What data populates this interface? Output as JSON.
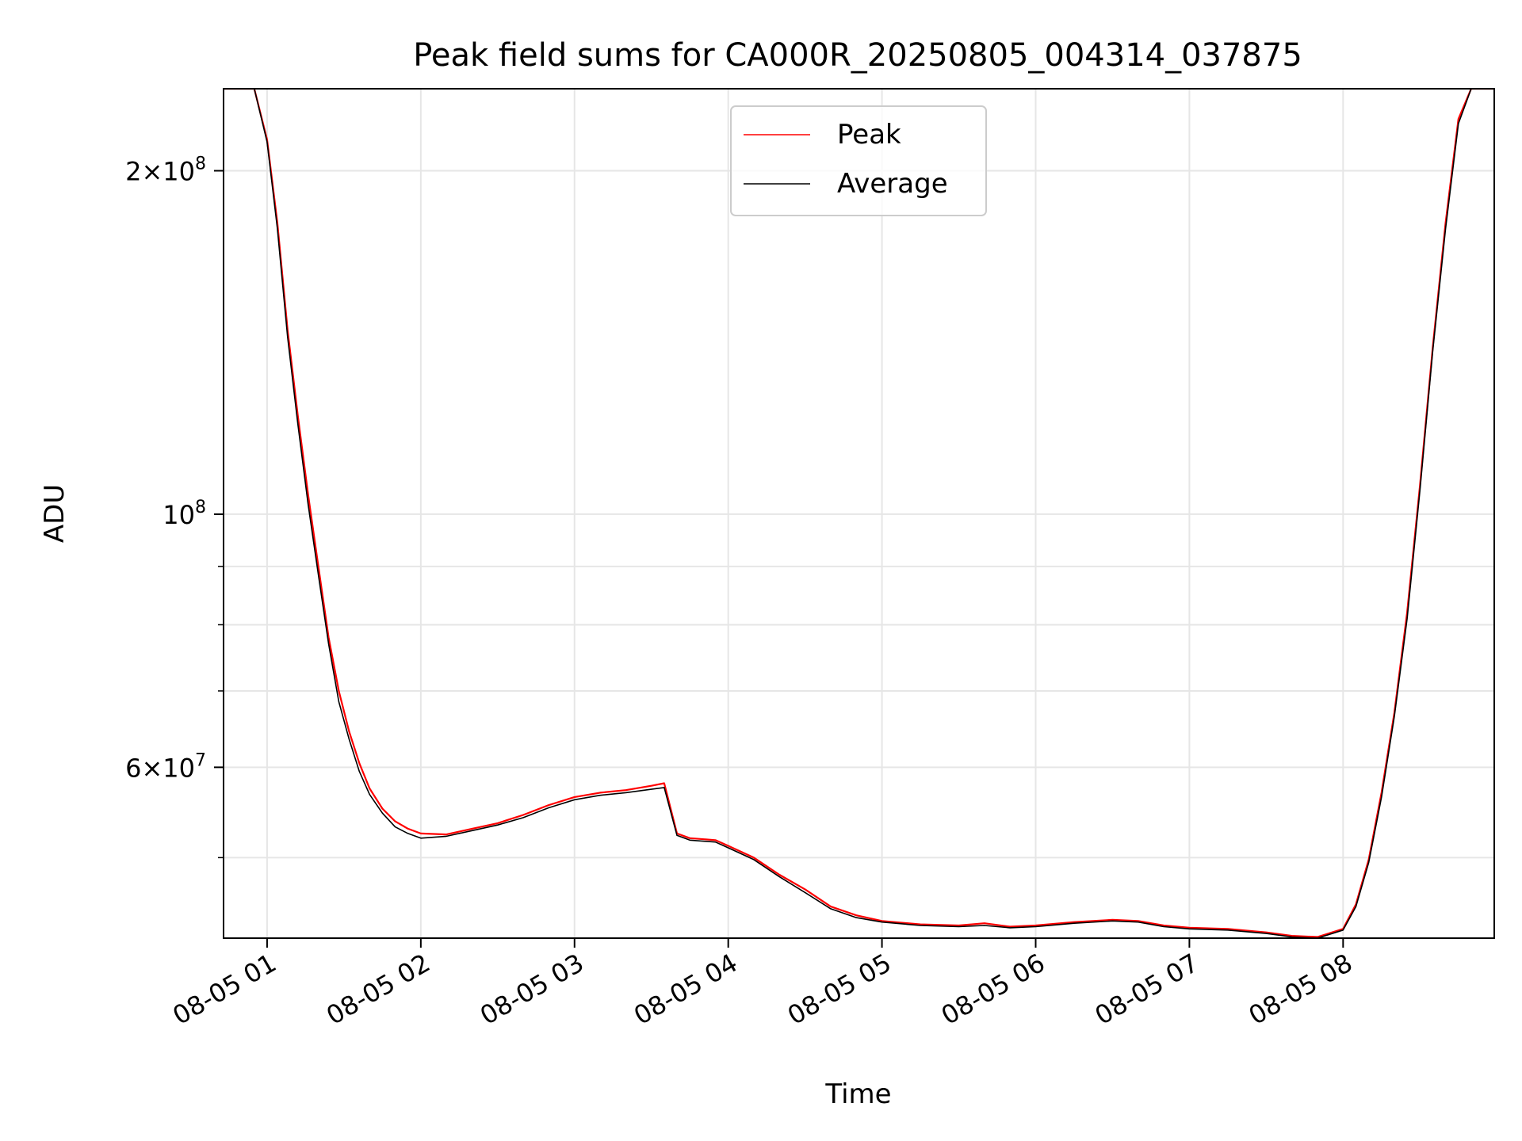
{
  "chart_data": {
    "type": "line",
    "title": "Peak field sums for CA000R_20250805_004314_037875",
    "xlabel": "Time",
    "ylabel": "ADU",
    "y_scale": "log",
    "grid": true,
    "legend_position": "top-center",
    "xlim": [
      "2025-08-05 00:43",
      "2025-08-05 08:59"
    ],
    "ylim": [
      42500000,
      236000000
    ],
    "x_ticks": [
      {
        "t": "2025-08-05 01:00",
        "label": "08-05 01"
      },
      {
        "t": "2025-08-05 02:00",
        "label": "08-05 02"
      },
      {
        "t": "2025-08-05 03:00",
        "label": "08-05 03"
      },
      {
        "t": "2025-08-05 04:00",
        "label": "08-05 04"
      },
      {
        "t": "2025-08-05 05:00",
        "label": "08-05 05"
      },
      {
        "t": "2025-08-05 06:00",
        "label": "08-05 06"
      },
      {
        "t": "2025-08-05 07:00",
        "label": "08-05 07"
      },
      {
        "t": "2025-08-05 08:00",
        "label": "08-05 08"
      }
    ],
    "y_major_ticks": [
      {
        "value": 60000000,
        "mantissa": "6",
        "exponent": "7"
      },
      {
        "value": 100000000,
        "mantissa": "",
        "exponent": "8"
      },
      {
        "value": 200000000,
        "mantissa": "2",
        "exponent": "8"
      }
    ],
    "y_minor_grid": [
      50000000,
      70000000,
      80000000,
      90000000
    ],
    "series": [
      {
        "name": "Peak",
        "color": "#ff0000",
        "x": [
          "2025-08-05 00:43",
          "2025-08-05 00:55",
          "2025-08-05 01:00",
          "2025-08-05 01:04",
          "2025-08-05 01:08",
          "2025-08-05 01:12",
          "2025-08-05 01:16",
          "2025-08-05 01:20",
          "2025-08-05 01:24",
          "2025-08-05 01:28",
          "2025-08-05 01:32",
          "2025-08-05 01:36",
          "2025-08-05 01:40",
          "2025-08-05 01:45",
          "2025-08-05 01:50",
          "2025-08-05 01:55",
          "2025-08-05 02:00",
          "2025-08-05 02:10",
          "2025-08-05 02:20",
          "2025-08-05 02:30",
          "2025-08-05 02:40",
          "2025-08-05 02:50",
          "2025-08-05 03:00",
          "2025-08-05 03:10",
          "2025-08-05 03:20",
          "2025-08-05 03:30",
          "2025-08-05 03:35",
          "2025-08-05 03:40",
          "2025-08-05 03:45",
          "2025-08-05 03:55",
          "2025-08-05 04:00",
          "2025-08-05 04:10",
          "2025-08-05 04:20",
          "2025-08-05 04:30",
          "2025-08-05 04:40",
          "2025-08-05 04:50",
          "2025-08-05 05:00",
          "2025-08-05 05:15",
          "2025-08-05 05:30",
          "2025-08-05 05:40",
          "2025-08-05 05:50",
          "2025-08-05 06:00",
          "2025-08-05 06:15",
          "2025-08-05 06:30",
          "2025-08-05 06:40",
          "2025-08-05 06:50",
          "2025-08-05 07:00",
          "2025-08-05 07:15",
          "2025-08-05 07:30",
          "2025-08-05 07:40",
          "2025-08-05 07:50",
          "2025-08-05 08:00",
          "2025-08-05 08:05",
          "2025-08-05 08:10",
          "2025-08-05 08:15",
          "2025-08-05 08:20",
          "2025-08-05 08:25",
          "2025-08-05 08:30",
          "2025-08-05 08:35",
          "2025-08-05 08:40",
          "2025-08-05 08:45",
          "2025-08-05 08:50",
          "2025-08-05 08:59"
        ],
        "y": [
          236000000,
          236000000,
          213000000,
          180000000,
          145000000,
          122000000,
          104000000,
          90000000,
          78000000,
          70000000,
          64500000,
          60500000,
          57500000,
          55200000,
          53800000,
          53000000,
          52500000,
          52400000,
          53000000,
          53600000,
          54500000,
          55600000,
          56500000,
          57000000,
          57300000,
          57800000,
          58100000,
          52500000,
          52000000,
          51800000,
          51200000,
          50000000,
          48300000,
          46900000,
          45300000,
          44500000,
          44000000,
          43700000,
          43600000,
          43800000,
          43500000,
          43600000,
          43900000,
          44100000,
          44000000,
          43600000,
          43400000,
          43300000,
          43000000,
          42700000,
          42600000,
          43300000,
          45500000,
          49800000,
          57000000,
          67000000,
          82000000,
          106000000,
          140000000,
          180000000,
          222000000,
          236000000,
          236000000
        ]
      },
      {
        "name": "Average",
        "color": "#000000",
        "x": [
          "2025-08-05 00:43",
          "2025-08-05 00:55",
          "2025-08-05 01:00",
          "2025-08-05 01:04",
          "2025-08-05 01:08",
          "2025-08-05 01:12",
          "2025-08-05 01:16",
          "2025-08-05 01:20",
          "2025-08-05 01:24",
          "2025-08-05 01:28",
          "2025-08-05 01:32",
          "2025-08-05 01:36",
          "2025-08-05 01:40",
          "2025-08-05 01:45",
          "2025-08-05 01:50",
          "2025-08-05 01:55",
          "2025-08-05 02:00",
          "2025-08-05 02:10",
          "2025-08-05 02:20",
          "2025-08-05 02:30",
          "2025-08-05 02:40",
          "2025-08-05 02:50",
          "2025-08-05 03:00",
          "2025-08-05 03:10",
          "2025-08-05 03:20",
          "2025-08-05 03:30",
          "2025-08-05 03:35",
          "2025-08-05 03:40",
          "2025-08-05 03:45",
          "2025-08-05 03:55",
          "2025-08-05 04:00",
          "2025-08-05 04:10",
          "2025-08-05 04:20",
          "2025-08-05 04:30",
          "2025-08-05 04:40",
          "2025-08-05 04:50",
          "2025-08-05 05:00",
          "2025-08-05 05:15",
          "2025-08-05 05:30",
          "2025-08-05 05:40",
          "2025-08-05 05:50",
          "2025-08-05 06:00",
          "2025-08-05 06:15",
          "2025-08-05 06:30",
          "2025-08-05 06:40",
          "2025-08-05 06:50",
          "2025-08-05 07:00",
          "2025-08-05 07:15",
          "2025-08-05 07:30",
          "2025-08-05 07:40",
          "2025-08-05 07:50",
          "2025-08-05 08:00",
          "2025-08-05 08:05",
          "2025-08-05 08:10",
          "2025-08-05 08:15",
          "2025-08-05 08:20",
          "2025-08-05 08:25",
          "2025-08-05 08:30",
          "2025-08-05 08:35",
          "2025-08-05 08:40",
          "2025-08-05 08:45",
          "2025-08-05 08:50",
          "2025-08-05 08:59"
        ],
        "y": [
          236000000,
          236000000,
          212000000,
          178000000,
          143000000,
          120000000,
          102000000,
          88500000,
          77000000,
          68500000,
          63500000,
          59500000,
          56800000,
          54700000,
          53200000,
          52500000,
          52000000,
          52200000,
          52800000,
          53400000,
          54200000,
          55300000,
          56200000,
          56700000,
          57000000,
          57400000,
          57600000,
          52300000,
          51800000,
          51600000,
          51000000,
          49800000,
          48100000,
          46600000,
          45100000,
          44300000,
          43900000,
          43600000,
          43500000,
          43600000,
          43400000,
          43500000,
          43800000,
          44000000,
          43900000,
          43500000,
          43300000,
          43200000,
          42900000,
          42600000,
          42500000,
          43200000,
          45300000,
          49500000,
          56500000,
          66500000,
          81000000,
          105000000,
          139000000,
          178000000,
          220000000,
          236000000,
          236000000
        ]
      }
    ]
  }
}
